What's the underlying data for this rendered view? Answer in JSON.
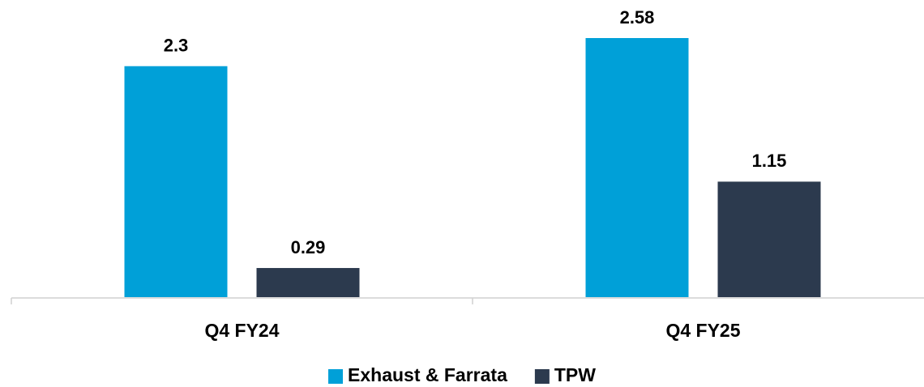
{
  "chart_data": {
    "type": "bar",
    "categories": [
      "Q4 FY24",
      "Q4 FY25"
    ],
    "series": [
      {
        "name": "Exhaust & Farrata",
        "color": "#00a0d8",
        "values": [
          2.3,
          2.58
        ]
      },
      {
        "name": "TPW",
        "color": "#2c3a4e",
        "values": [
          0.29,
          1.15
        ]
      }
    ],
    "legend": "bottom"
  }
}
